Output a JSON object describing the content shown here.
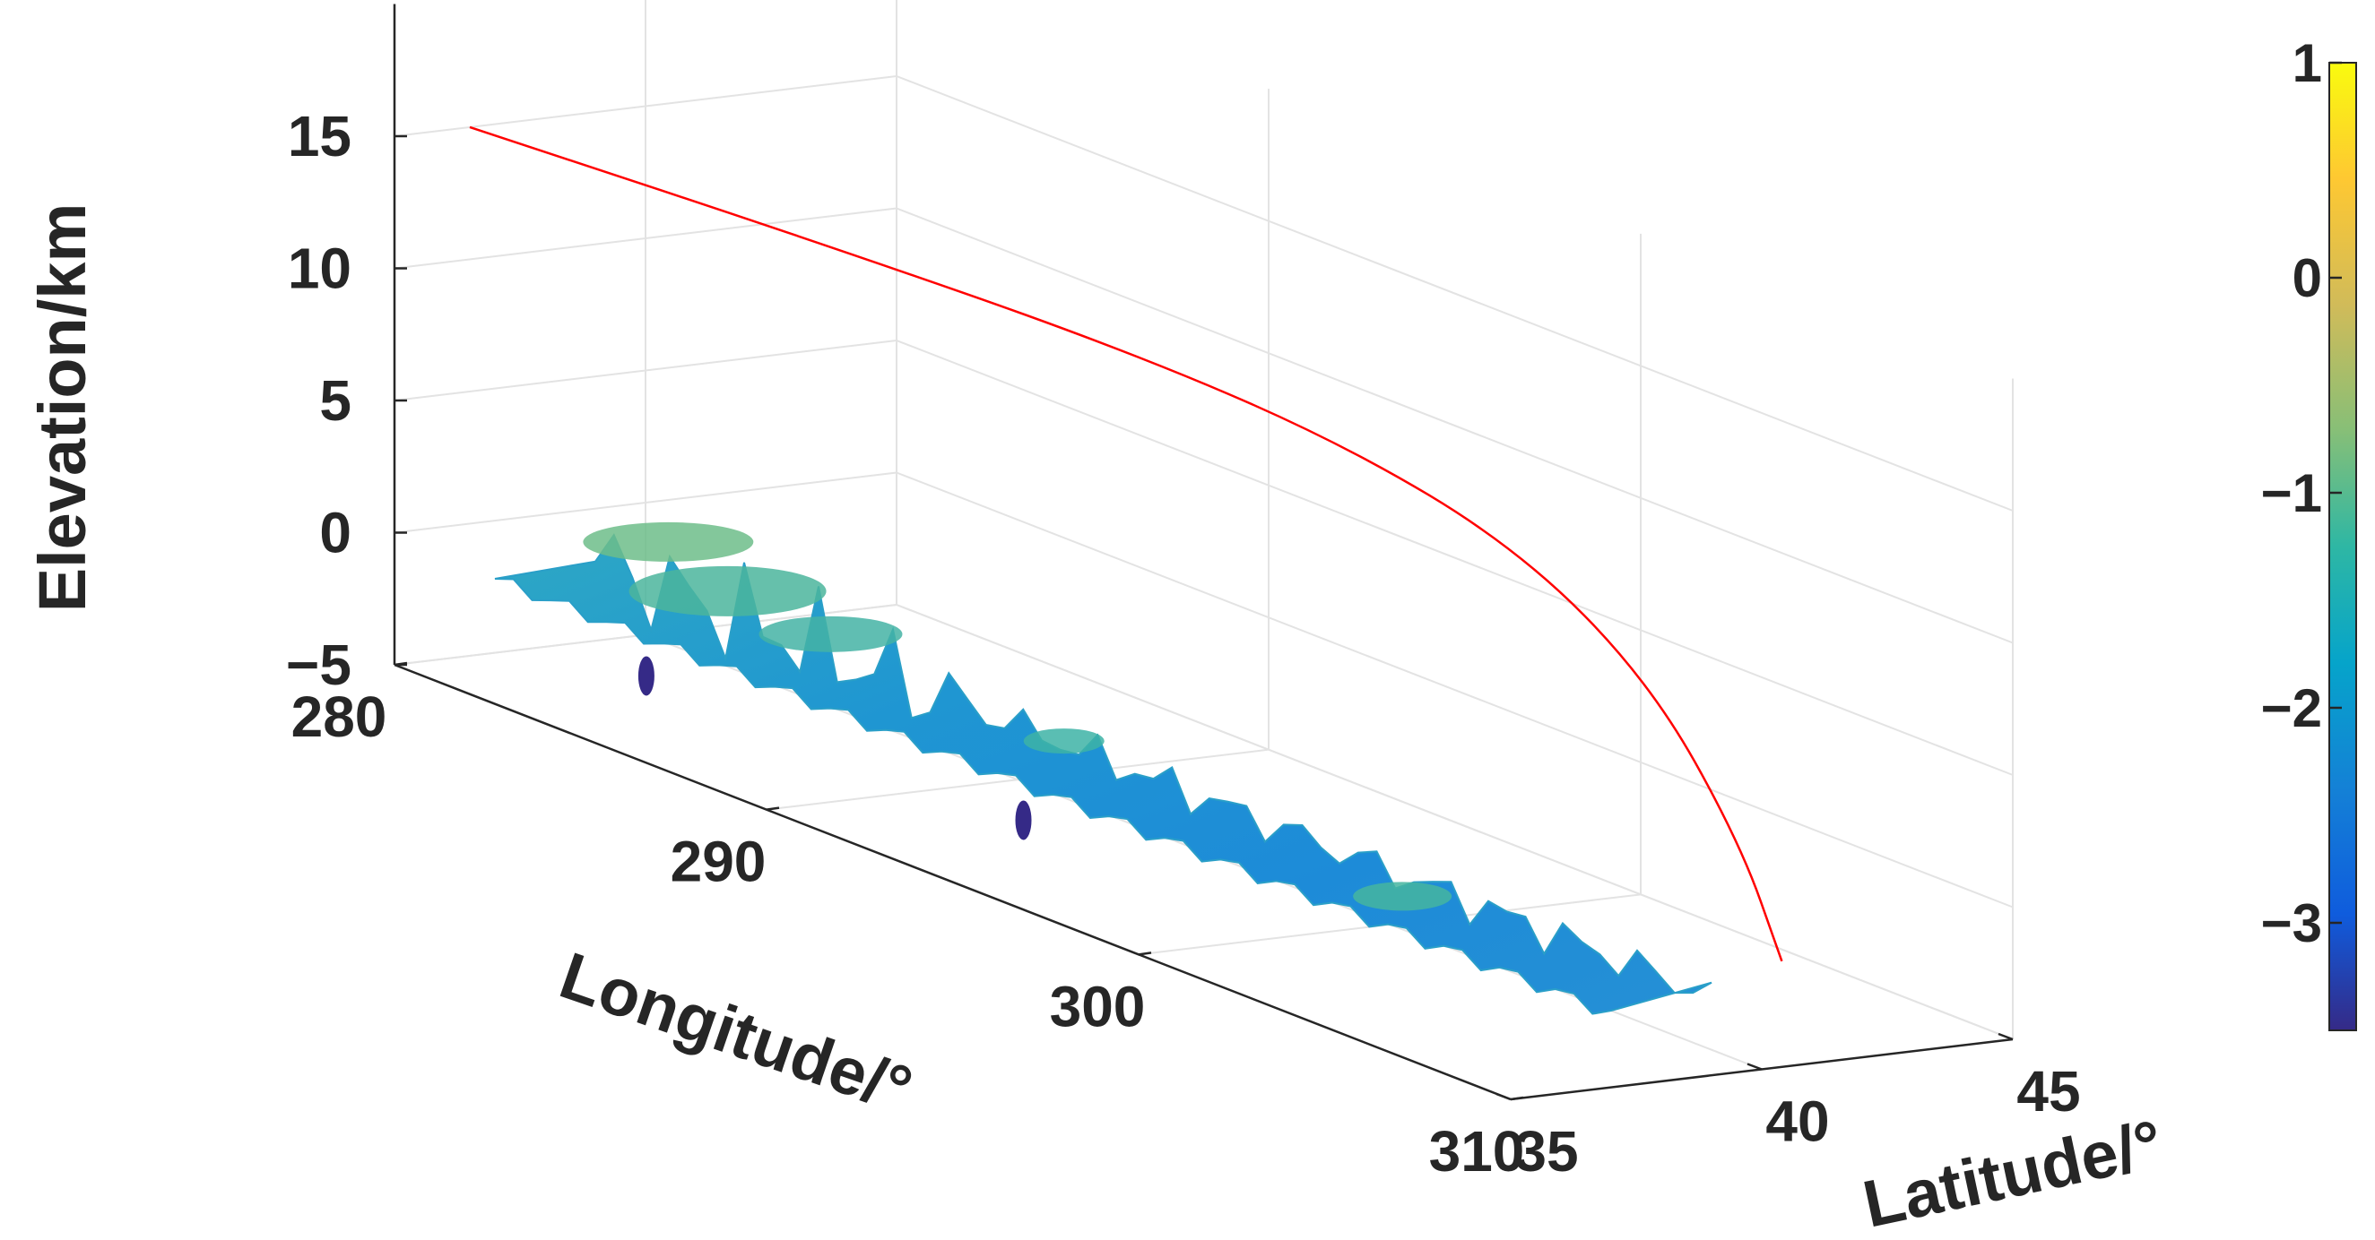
{
  "chart_data": {
    "type": "surface3d",
    "title": "",
    "xlabel": "Longitude/°",
    "ylabel": "Latitude/°",
    "zlabel": "Elevation/km",
    "xlim": [
      280,
      310
    ],
    "ylim": [
      35,
      45
    ],
    "zlim": [
      -5,
      20
    ],
    "x_ticks": [
      "280",
      "290",
      "300",
      "310"
    ],
    "y_ticks": [
      "35",
      "40",
      "45"
    ],
    "z_ticks": [
      "−5",
      "0",
      "5",
      "10",
      "15"
    ],
    "grid": true,
    "surface": {
      "name": "",
      "colormap": "parula",
      "lon_range": [
        280,
        310
      ],
      "lat_range": [
        37,
        39
      ],
      "elevation_range_km": [
        -3.5,
        0.5
      ]
    },
    "trajectory": {
      "color": "#ff0000",
      "points": [
        {
          "lon": 280,
          "lat": 36.5,
          "elev": 15
        },
        {
          "lon": 288,
          "lat": 37.4,
          "elev": 14.9
        },
        {
          "lon": 295,
          "lat": 38.3,
          "elev": 14.5
        },
        {
          "lon": 300,
          "lat": 39.0,
          "elev": 13.5
        },
        {
          "lon": 304,
          "lat": 39.6,
          "elev": 11.5
        },
        {
          "lon": 307,
          "lat": 40.0,
          "elev": 8.0
        },
        {
          "lon": 309,
          "lat": 40.3,
          "elev": 3.0
        },
        {
          "lon": 310,
          "lat": 40.4,
          "elev": -1.0
        }
      ]
    },
    "colorbar": {
      "range": [
        -3.5,
        1
      ],
      "ticks": [
        "1",
        "0",
        "−1",
        "−2",
        "−3"
      ],
      "tick_values": [
        1,
        0,
        -1,
        -2,
        -3
      ]
    }
  }
}
